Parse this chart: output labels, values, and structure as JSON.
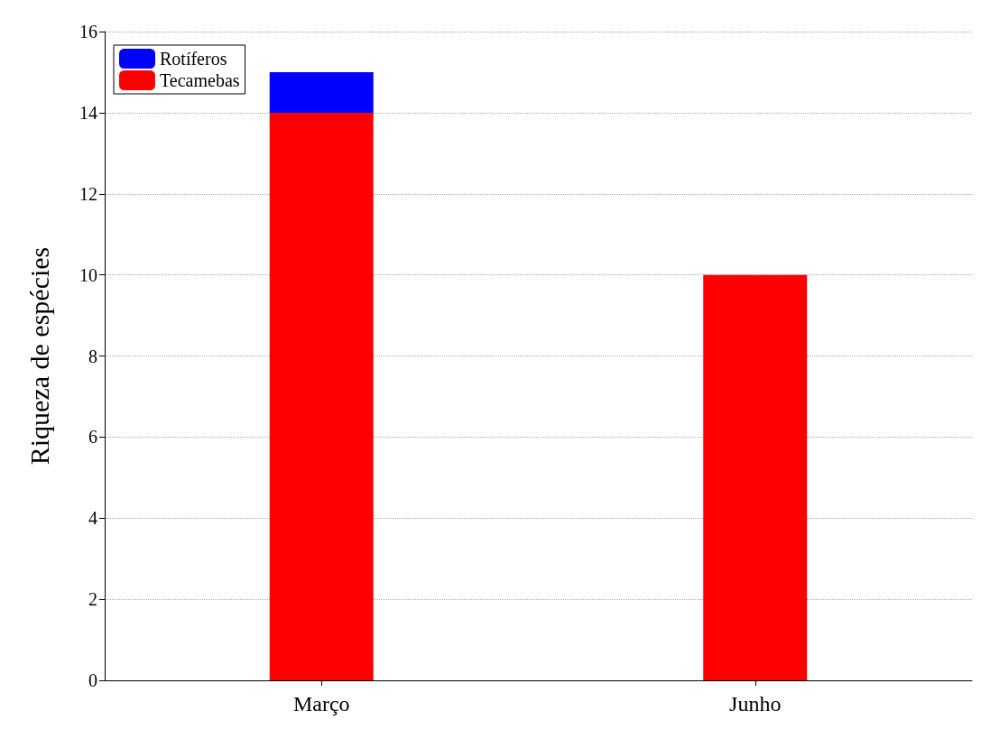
{
  "chart_data": {
    "type": "bar",
    "ylabel": "Riqueza de espécies",
    "categories": [
      "Março",
      "Junho"
    ],
    "stacked": true,
    "series": [
      {
        "name": "Tecamebas",
        "color": "#ff0000",
        "values": [
          14,
          10
        ]
      },
      {
        "name": "Rotíferos",
        "color": "#0000ff",
        "values": [
          1,
          0
        ]
      }
    ],
    "ylim": [
      0,
      16
    ],
    "yticks": [
      0,
      2,
      4,
      6,
      8,
      10,
      12,
      14,
      16
    ],
    "grid": "y",
    "legend": "top left"
  }
}
